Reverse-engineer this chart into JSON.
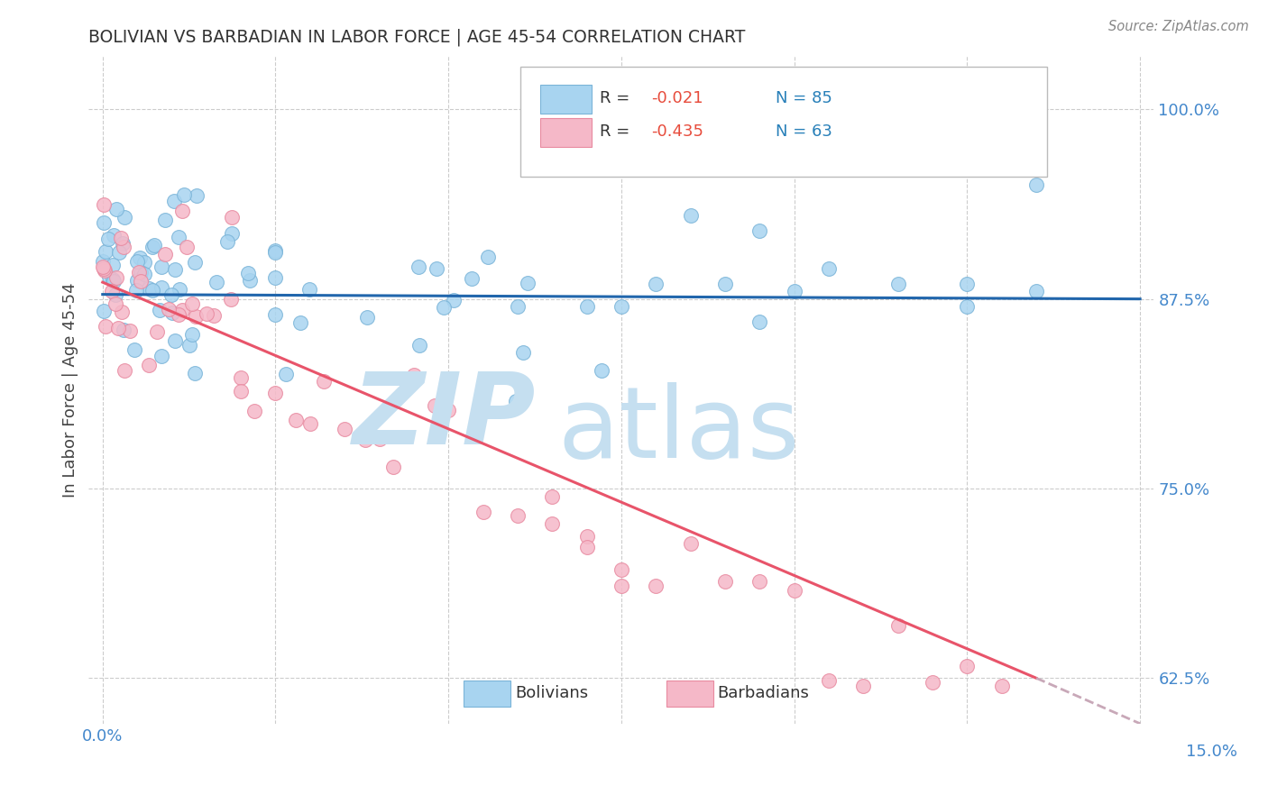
{
  "title": "BOLIVIAN VS BARBADIAN IN LABOR FORCE | AGE 45-54 CORRELATION CHART",
  "source_text": "Source: ZipAtlas.com",
  "ylabel": "In Labor Force | Age 45-54",
  "xlim": [
    0.0,
    0.15
  ],
  "ylim": [
    0.6,
    1.03
  ],
  "blue_R": -0.021,
  "blue_N": 85,
  "pink_R": -0.435,
  "pink_N": 63,
  "blue_color": "#a8d4f0",
  "pink_color": "#f5b8c8",
  "blue_edge_color": "#7ab4d8",
  "pink_edge_color": "#e88aa0",
  "blue_line_color": "#2166ac",
  "pink_line_color": "#e8546a",
  "dashed_line_color": "#c8a8b8",
  "background_color": "#ffffff",
  "grid_color": "#cccccc",
  "title_color": "#333333",
  "axis_label_color": "#444444",
  "tick_color": "#4488cc",
  "legend_R_color": "#e74c3c",
  "legend_N_color": "#2980b9",
  "watermark_ZIP_color": "#c5dff0",
  "watermark_atlas_color": "#c5dff0"
}
